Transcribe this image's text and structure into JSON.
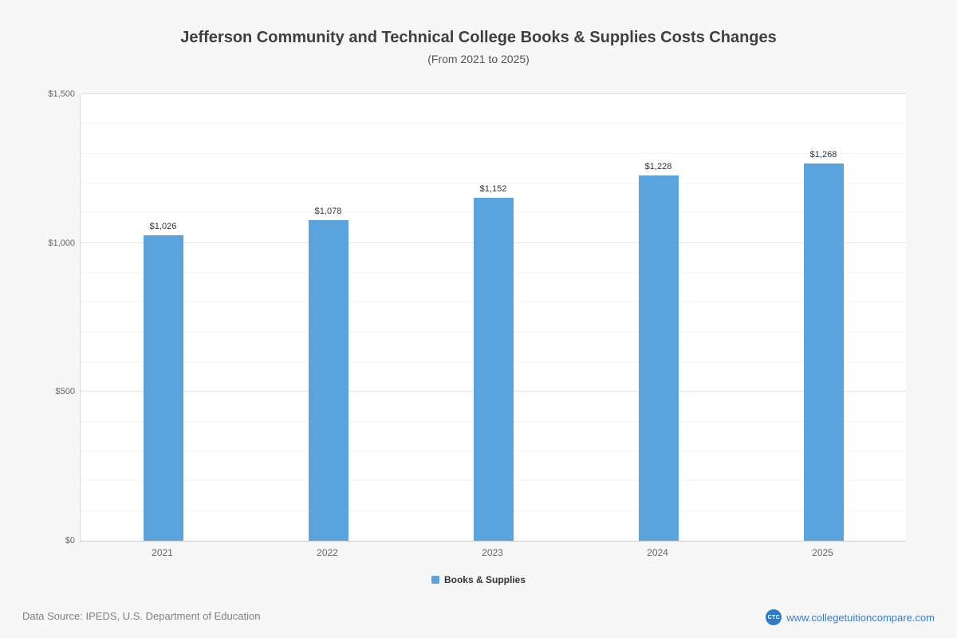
{
  "chart_data": {
    "type": "bar",
    "title": "Jefferson Community and Technical College Books & Supplies Costs Changes",
    "subtitle": "(From 2021 to 2025)",
    "categories": [
      "2021",
      "2022",
      "2023",
      "2024",
      "2025"
    ],
    "values": [
      1026,
      1078,
      1152,
      1228,
      1268
    ],
    "value_labels": [
      "$1,026",
      "$1,078",
      "$1,152",
      "$1,228",
      "$1,268"
    ],
    "legend": "Books & Supplies",
    "xlabel": "",
    "ylabel": "",
    "ylim": [
      0,
      1500
    ],
    "yticks": [
      {
        "value": 0,
        "label": "$0"
      },
      {
        "value": 500,
        "label": "$500"
      },
      {
        "value": 1000,
        "label": "$1,000"
      },
      {
        "value": 1500,
        "label": "$1,500"
      }
    ],
    "grid": true,
    "grid_minor_step": 100,
    "grid_major_step": 500,
    "legend_position": "bottom",
    "bar_color": "#5ba3dc"
  },
  "footer": {
    "source": "Data Source: IPEDS, U.S. Department of Education",
    "logo_text": "CTC",
    "site": "www.collegetuitioncompare.com"
  }
}
